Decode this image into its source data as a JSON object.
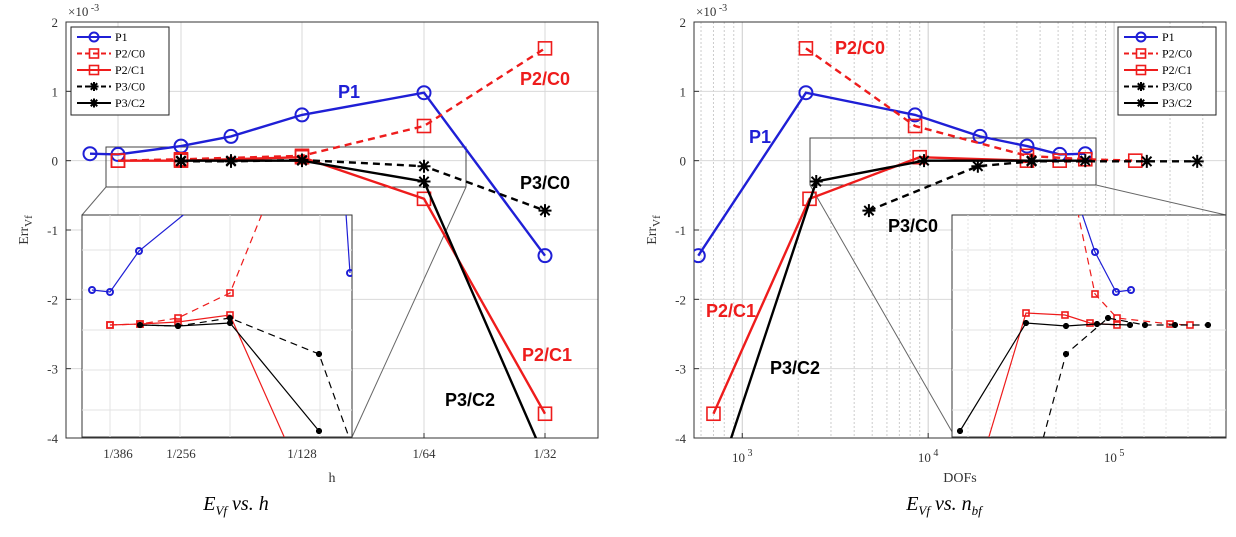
{
  "colors": {
    "P1": "#1f1fd6",
    "P2": "#ee1c1c",
    "P3": "#000000",
    "grid": "#d9d9d9"
  },
  "chart_data": [
    {
      "type": "line",
      "xlabel": "h",
      "ylabel": "Err",
      "ylabel_sub": "Vf",
      "exponent_label": "×10",
      "exponent_power": "-3",
      "ylim": [
        -4,
        2
      ],
      "yticks": [
        "2",
        "1",
        "0",
        "-1",
        "-2",
        "-3",
        "-4"
      ],
      "xticks": [
        "1/386",
        "1/256",
        "1/128",
        "1/64",
        "1/32"
      ],
      "caption_main": "E",
      "caption_sub": "Vf",
      "caption_rest": "vs. h",
      "legend_position": "top-left",
      "annotations": [
        "P1",
        "P2/C0",
        "P3/C0",
        "P2/C1",
        "P3/C2"
      ],
      "series": [
        {
          "name": "P1",
          "x": [
            "1/450",
            "1/386",
            "1/256",
            "1/190",
            "1/128",
            "1/64",
            "1/32"
          ],
          "y": [
            0.1,
            0.09,
            0.21,
            0.35,
            0.66,
            0.98,
            -1.37
          ]
        },
        {
          "name": "P2/C0",
          "x": [
            "1/386",
            "1/256",
            "1/128",
            "1/64",
            "1/32"
          ],
          "y": [
            0.0,
            0.02,
            0.07,
            0.5,
            1.62
          ]
        },
        {
          "name": "P2/C1",
          "x": [
            "1/386",
            "1/256",
            "1/128",
            "1/64",
            "1/32"
          ],
          "y": [
            0.0,
            0.0,
            0.05,
            -0.55,
            -3.65
          ]
        },
        {
          "name": "P3/C0",
          "x": [
            "1/256",
            "1/190",
            "1/128",
            "1/64",
            "1/32"
          ],
          "y": [
            -0.01,
            -0.01,
            0.01,
            -0.08,
            -0.72
          ]
        },
        {
          "name": "P3/C2",
          "x": [
            "1/256",
            "1/190",
            "1/128",
            "1/64",
            "1/32"
          ],
          "y": [
            0.0,
            0.0,
            0.0,
            -0.3,
            -4.3
          ]
        }
      ]
    },
    {
      "type": "line",
      "xlabel": "DOFs",
      "ylabel": "Err",
      "ylabel_sub": "Vf",
      "exponent_label": "×10",
      "exponent_power": "-3",
      "xscale": "log",
      "xlim": [
        550,
        400000
      ],
      "ylim": [
        -4,
        2
      ],
      "yticks": [
        "2",
        "1",
        "0",
        "-1",
        "-2",
        "-3",
        "-4"
      ],
      "xticks": [
        {
          "base": "10",
          "power": "3",
          "value": 1000
        },
        {
          "base": "10",
          "power": "4",
          "value": 10000
        },
        {
          "base": "10",
          "power": "5",
          "value": 100000
        }
      ],
      "caption_main": "E",
      "caption_sub": "Vf",
      "caption_rest": "vs. n",
      "caption_rest_sub": "bf",
      "legend_position": "top-right",
      "annotations": [
        "P2/C0",
        "P1",
        "P3/C0",
        "P2/C1",
        "P3/C2"
      ],
      "series": [
        {
          "name": "P1",
          "x": [
            580,
            2200,
            8500,
            19000,
            34000,
            51000,
            70000
          ],
          "y": [
            -1.37,
            0.98,
            0.66,
            0.35,
            0.21,
            0.09,
            0.1
          ]
        },
        {
          "name": "P2/C0",
          "x": [
            2200,
            8500,
            34000,
            70000,
            130000
          ],
          "y": [
            1.62,
            0.5,
            0.07,
            0.02,
            0.0
          ]
        },
        {
          "name": "P2/C1",
          "x": [
            700,
            2300,
            9000,
            34000,
            51000
          ],
          "y": [
            -3.65,
            -0.55,
            0.05,
            0.0,
            0.0
          ]
        },
        {
          "name": "P3/C0",
          "x": [
            4800,
            18500,
            36000,
            150000,
            280000
          ],
          "y": [
            -0.72,
            -0.08,
            -0.01,
            -0.01,
            -0.01
          ]
        },
        {
          "name": "P3/C2",
          "x": [
            800,
            2500,
            9500,
            36000,
            70000
          ],
          "y": [
            -4.3,
            -0.3,
            0.0,
            0.0,
            0.0
          ]
        }
      ]
    }
  ]
}
